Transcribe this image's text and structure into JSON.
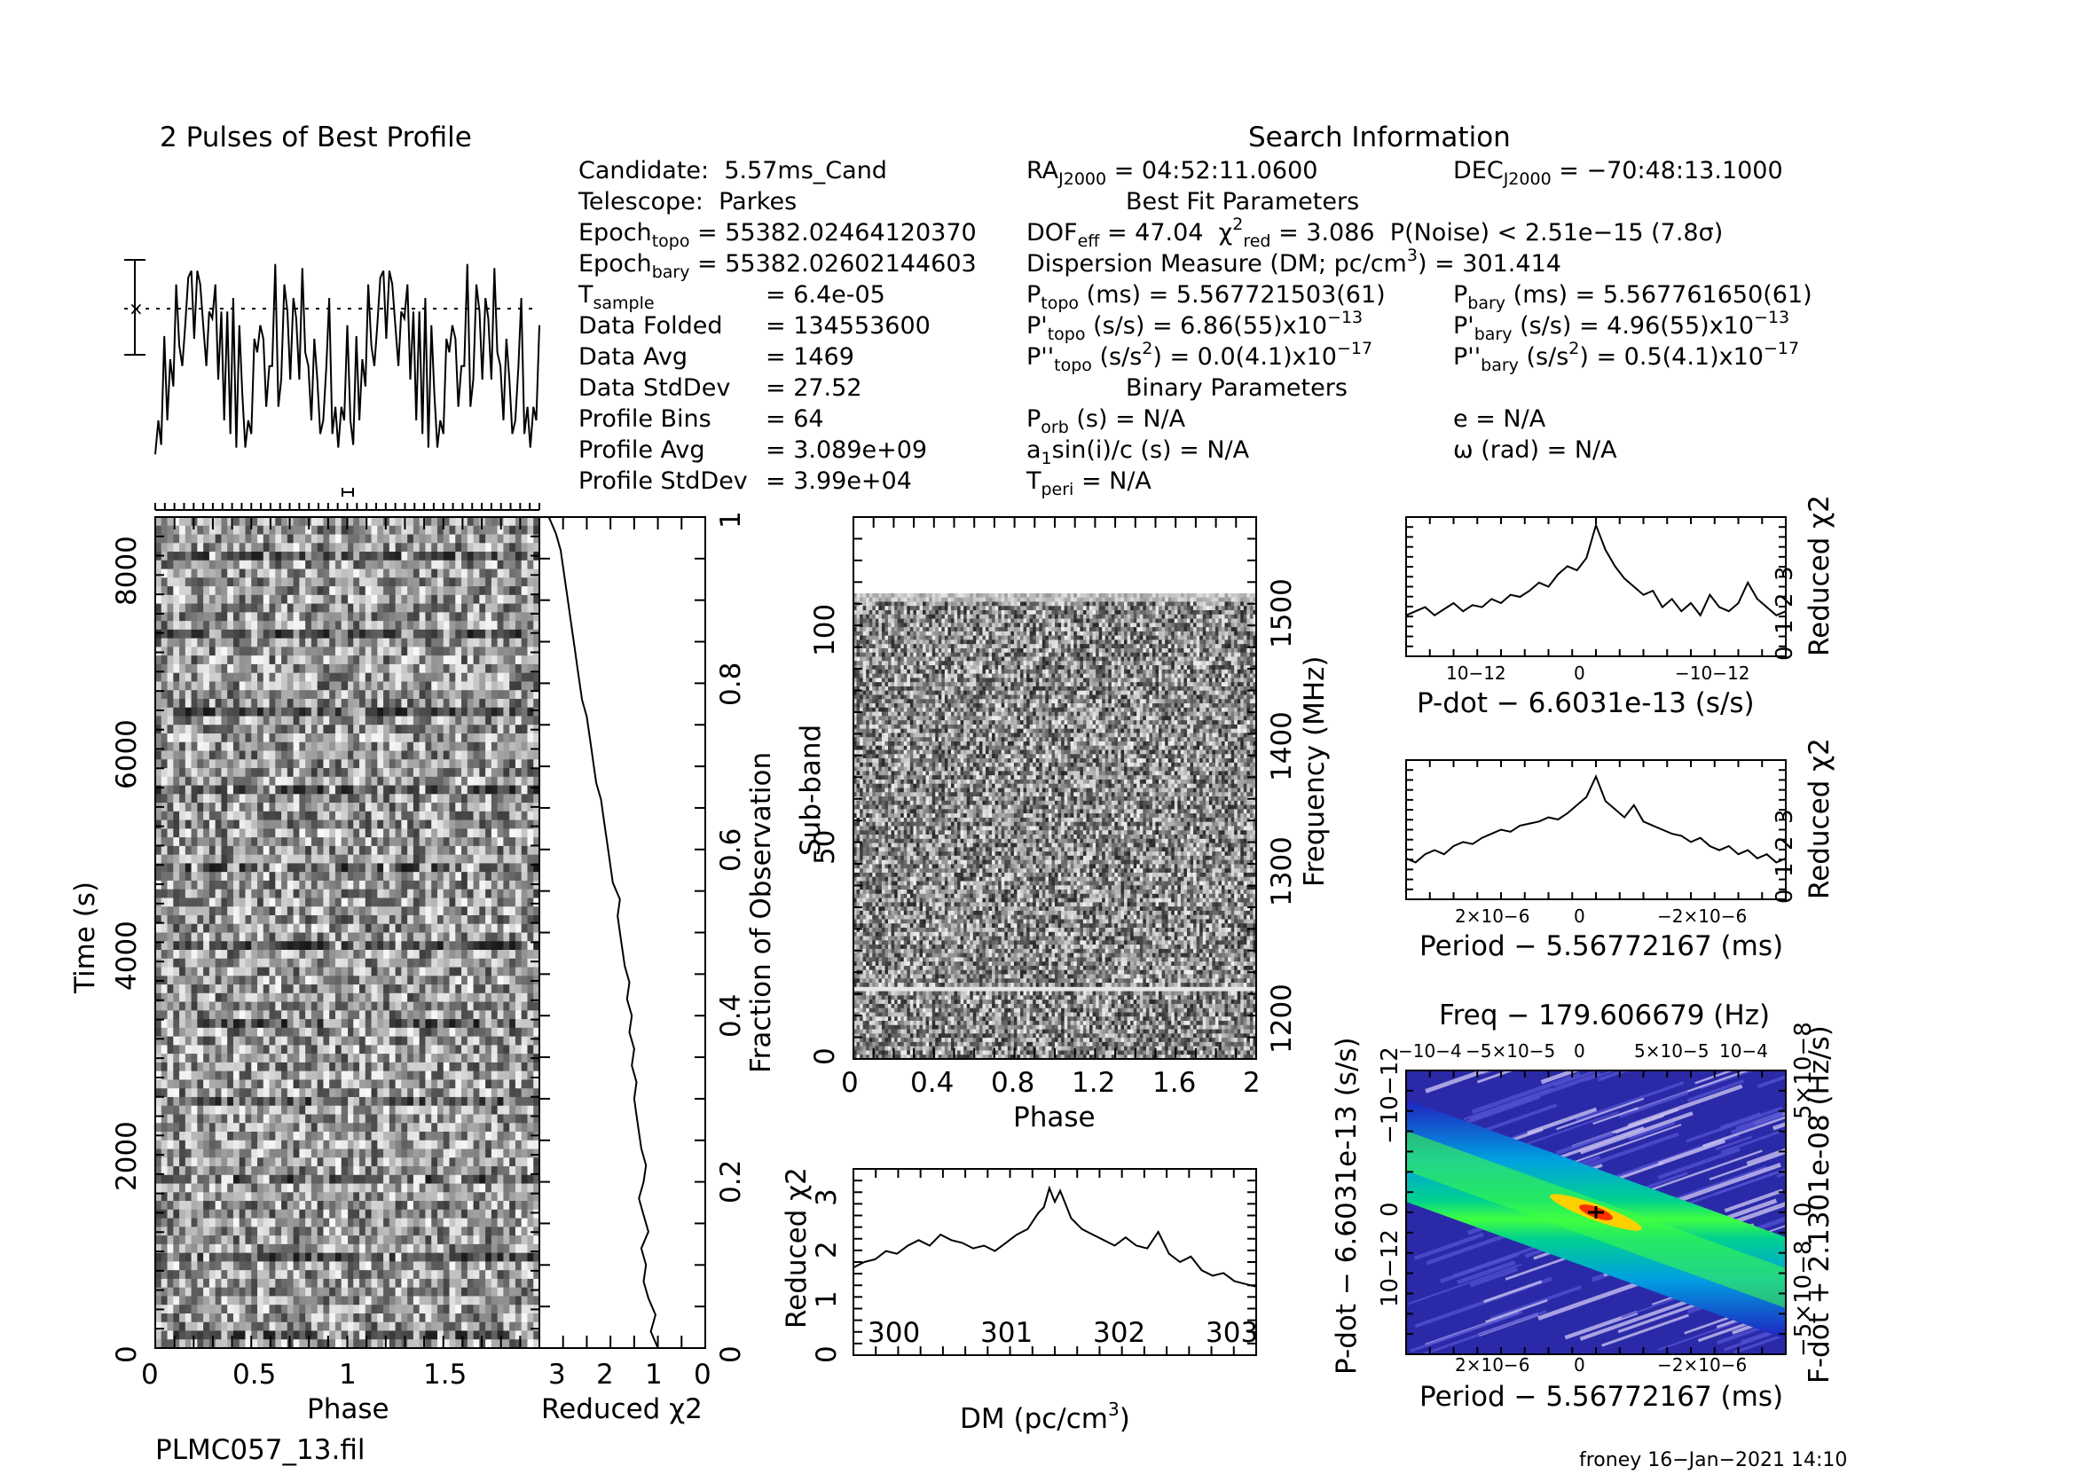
{
  "chart_data": [
    {
      "type": "line",
      "title": "2 Pulses of Best Profile",
      "x": [
        0,
        0.016,
        0.031,
        0.047,
        0.063,
        0.078,
        0.094,
        0.109,
        0.125,
        0.141,
        0.156,
        0.172,
        0.188,
        0.203,
        0.219,
        0.234,
        0.25,
        0.266,
        0.281,
        0.297,
        0.313,
        0.328,
        0.344,
        0.359,
        0.375,
        0.391,
        0.406,
        0.422,
        0.438,
        0.453,
        0.469,
        0.484,
        0.5,
        0.516,
        0.531,
        0.547,
        0.563,
        0.578,
        0.594,
        0.609,
        0.625,
        0.641,
        0.656,
        0.672,
        0.688,
        0.703,
        0.719,
        0.734,
        0.75,
        0.766,
        0.781,
        0.797,
        0.813,
        0.828,
        0.844,
        0.859,
        0.875,
        0.891,
        0.906,
        0.922,
        0.938,
        0.953,
        0.969,
        0.984,
        1.0,
        1.016,
        1.031,
        1.047,
        1.063,
        1.078,
        1.094,
        1.109,
        1.125,
        1.141,
        1.156,
        1.172,
        1.188,
        1.203,
        1.219,
        1.234,
        1.25,
        1.266,
        1.281,
        1.297,
        1.313,
        1.328,
        1.344,
        1.359,
        1.375,
        1.391,
        1.406,
        1.422,
        1.438,
        1.453,
        1.469,
        1.484,
        1.5,
        1.516,
        1.531,
        1.547,
        1.563,
        1.578,
        1.594,
        1.609,
        1.625,
        1.641,
        1.656,
        1.672,
        1.688,
        1.703,
        1.719,
        1.734,
        1.75,
        1.766,
        1.781,
        1.797,
        1.813,
        1.828,
        1.844,
        1.859,
        1.875,
        1.891,
        1.906,
        1.922,
        1.938,
        1.953,
        1.969,
        1.984,
        2.0
      ],
      "values": [
        0.05,
        0.3,
        0.12,
        0.92,
        0.3,
        0.75,
        0.55,
        1.3,
        0.85,
        0.7,
        1.0,
        1.35,
        1.4,
        0.9,
        1.4,
        1.3,
        1.0,
        0.7,
        1.1,
        1.05,
        1.3,
        0.6,
        1.1,
        0.3,
        1.1,
        0.2,
        1.2,
        0.1,
        1.0,
        0.5,
        0.1,
        0.3,
        0.2,
        0.9,
        0.8,
        1.0,
        0.9,
        0.4,
        0.7,
        0.7,
        1.45,
        0.4,
        0.6,
        1.3,
        1.1,
        0.6,
        1.2,
        1.05,
        0.6,
        1.42,
        0.8,
        0.7,
        0.3,
        0.9,
        0.6,
        0.2,
        0.3,
        0.7,
        1.2,
        0.2,
        0.4,
        0.1,
        0.4,
        0.3,
        1.0,
        0.3,
        0.12,
        0.92,
        0.3,
        0.75,
        0.55,
        1.3,
        0.85,
        0.7,
        1.0,
        1.35,
        1.4,
        0.9,
        1.4,
        1.3,
        1.0,
        0.7,
        1.1,
        1.05,
        1.3,
        0.6,
        1.1,
        0.3,
        1.1,
        0.2,
        1.2,
        0.1,
        1.0,
        0.5,
        0.1,
        0.3,
        0.2,
        0.9,
        0.8,
        1.0,
        0.9,
        0.4,
        0.7,
        0.7,
        1.45,
        0.4,
        0.6,
        1.3,
        1.1,
        0.6,
        1.2,
        1.05,
        0.6,
        1.42,
        0.8,
        0.7,
        0.3,
        0.9,
        0.6,
        0.2,
        0.3,
        0.7,
        1.2,
        0.2,
        0.4,
        0.1,
        0.4,
        0.3,
        1.0
      ]
    },
    {
      "type": "heatmap",
      "xlabel": "Phase",
      "ylabel": "Time (s)",
      "xlim": [
        0,
        2
      ],
      "ylim": [
        0,
        8600
      ],
      "xticks": [
        "0",
        "0.5",
        "1",
        "1.5"
      ],
      "yticks": [
        "0",
        "2000",
        "4000",
        "6000",
        "8000"
      ],
      "colormap": "grayscale"
    },
    {
      "type": "line",
      "xlabel": "Reduced χ2",
      "ylabel": "Fraction of Observation",
      "xlim": [
        3.5,
        0
      ],
      "ylim": [
        0,
        1
      ],
      "xticks": [
        "3",
        "2",
        "1",
        "0"
      ],
      "yticks": [
        "0",
        "0.2",
        "0.4",
        "0.6",
        "0.8",
        "1"
      ],
      "fraction": [
        0,
        0.02,
        0.04,
        0.06,
        0.08,
        0.1,
        0.12,
        0.14,
        0.16,
        0.18,
        0.2,
        0.22,
        0.24,
        0.26,
        0.28,
        0.3,
        0.32,
        0.34,
        0.36,
        0.38,
        0.4,
        0.42,
        0.44,
        0.46,
        0.48,
        0.5,
        0.52,
        0.54,
        0.56,
        0.58,
        0.6,
        0.62,
        0.64,
        0.66,
        0.68,
        0.7,
        0.72,
        0.74,
        0.76,
        0.78,
        0.8,
        0.82,
        0.84,
        0.86,
        0.88,
        0.9,
        0.92,
        0.94,
        0.96,
        0.98,
        1.0
      ],
      "chi2": [
        1.0,
        1.15,
        1.05,
        1.2,
        1.3,
        1.25,
        1.35,
        1.2,
        1.3,
        1.4,
        1.3,
        1.25,
        1.35,
        1.4,
        1.45,
        1.5,
        1.45,
        1.55,
        1.5,
        1.6,
        1.55,
        1.65,
        1.6,
        1.7,
        1.75,
        1.8,
        1.85,
        1.8,
        1.95,
        2.0,
        2.05,
        2.1,
        2.15,
        2.2,
        2.3,
        2.35,
        2.4,
        2.45,
        2.5,
        2.6,
        2.65,
        2.7,
        2.75,
        2.8,
        2.85,
        2.9,
        2.95,
        3.0,
        3.05,
        3.15,
        3.3
      ]
    },
    {
      "type": "heatmap",
      "xlabel": "Phase",
      "ylabel": "Sub-band",
      "ylabel_right": "Frequency (MHz)",
      "xlim": [
        0,
        2
      ],
      "ylim": [
        0,
        128
      ],
      "xticks": [
        "0",
        "0.4",
        "0.8",
        "1.2",
        "1.6",
        "2"
      ],
      "yticks": [
        "0",
        "50",
        "100"
      ],
      "yticks_right": [
        "1200",
        "1300",
        "1400",
        "1500"
      ],
      "colormap": "grayscale"
    },
    {
      "type": "line",
      "xlabel": "DM (pc/cm3)",
      "ylabel": "Reduced χ2",
      "xlim": [
        299.6,
        303.3
      ],
      "ylim": [
        0,
        3.4
      ],
      "xticks": [
        "300",
        "301",
        "302",
        "303"
      ],
      "yticks": [
        "0",
        "1",
        "2",
        "3"
      ],
      "x": [
        299.6,
        299.7,
        299.8,
        299.9,
        300.0,
        300.1,
        300.2,
        300.3,
        300.4,
        300.5,
        300.6,
        300.7,
        300.8,
        300.9,
        301.0,
        301.1,
        301.2,
        301.3,
        301.35,
        301.4,
        301.45,
        301.5,
        301.55,
        301.6,
        301.7,
        301.8,
        301.9,
        302.0,
        302.1,
        302.2,
        302.3,
        302.4,
        302.5,
        302.6,
        302.7,
        302.8,
        302.9,
        303.0,
        303.1,
        303.2,
        303.3
      ],
      "values": [
        1.6,
        1.7,
        1.75,
        1.9,
        1.85,
        2.0,
        2.1,
        2.0,
        2.2,
        2.1,
        2.05,
        1.95,
        2.0,
        1.9,
        2.05,
        2.2,
        2.3,
        2.6,
        2.7,
        3.05,
        2.8,
        3.0,
        2.75,
        2.5,
        2.3,
        2.2,
        2.1,
        2.0,
        2.15,
        2.0,
        1.95,
        2.25,
        1.85,
        1.7,
        1.8,
        1.55,
        1.45,
        1.5,
        1.35,
        1.3,
        1.25
      ]
    },
    {
      "type": "line",
      "xlabel": "P-dot − 6.6031e-13 (s/s)",
      "ylabel": "Reduced χ2",
      "xlim": [
        -2e-12,
        2e-12
      ],
      "ylim": [
        0,
        3.4
      ],
      "xticks": [
        "10−12",
        "0",
        "−10−12"
      ],
      "yticks": [
        "0",
        "1",
        "2",
        "3"
      ],
      "x": [
        -2.0,
        -1.9,
        -1.8,
        -1.7,
        -1.6,
        -1.5,
        -1.4,
        -1.3,
        -1.2,
        -1.1,
        -1.0,
        -0.9,
        -0.8,
        -0.7,
        -0.6,
        -0.5,
        -0.4,
        -0.3,
        -0.2,
        -0.1,
        0.0,
        0.1,
        0.2,
        0.3,
        0.4,
        0.5,
        0.6,
        0.7,
        0.8,
        0.9,
        1.0,
        1.1,
        1.2,
        1.3,
        1.4,
        1.5,
        1.6,
        1.7,
        1.8,
        1.9,
        2.0
      ],
      "values": [
        1.0,
        1.1,
        1.2,
        1.0,
        1.15,
        1.3,
        1.1,
        1.25,
        1.2,
        1.4,
        1.3,
        1.5,
        1.45,
        1.6,
        1.8,
        1.7,
        2.0,
        2.2,
        2.1,
        2.4,
        3.2,
        2.6,
        2.2,
        1.9,
        1.7,
        1.5,
        1.6,
        1.2,
        1.4,
        1.1,
        1.3,
        1.0,
        1.5,
        1.2,
        1.1,
        1.3,
        1.8,
        1.4,
        1.2,
        1.0,
        1.1
      ]
    },
    {
      "type": "line",
      "xlabel": "Period − 5.56772167 (ms)",
      "ylabel": "Reduced χ2",
      "xlim": [
        -4e-06,
        4e-06
      ],
      "ylim": [
        0,
        3.4
      ],
      "xticks": [
        "2×10−6",
        "0",
        "−2×10−6"
      ],
      "yticks": [
        "0",
        "1",
        "2",
        "3"
      ],
      "x": [
        -4.0,
        -3.8,
        -3.6,
        -3.4,
        -3.2,
        -3.0,
        -2.8,
        -2.6,
        -2.4,
        -2.2,
        -2.0,
        -1.8,
        -1.6,
        -1.4,
        -1.2,
        -1.0,
        -0.8,
        -0.6,
        -0.4,
        -0.2,
        0.0,
        0.2,
        0.4,
        0.6,
        0.8,
        1.0,
        1.2,
        1.4,
        1.6,
        1.8,
        2.0,
        2.2,
        2.4,
        2.6,
        2.8,
        3.0,
        3.2,
        3.4,
        3.6,
        3.8,
        4.0
      ],
      "values": [
        1.0,
        0.9,
        1.1,
        1.2,
        1.1,
        1.3,
        1.4,
        1.35,
        1.5,
        1.6,
        1.7,
        1.65,
        1.8,
        1.85,
        1.9,
        2.0,
        1.95,
        2.1,
        2.3,
        2.5,
        3.0,
        2.4,
        2.2,
        2.0,
        2.3,
        1.9,
        1.8,
        1.7,
        1.6,
        1.55,
        1.4,
        1.5,
        1.3,
        1.2,
        1.3,
        1.1,
        1.2,
        1.0,
        1.1,
        0.9,
        1.0
      ]
    },
    {
      "type": "heatmap",
      "title": "Freq − 179.606679 (Hz)",
      "xlabel": "Period − 5.56772167 (ms)",
      "ylabel": "P-dot − 6.6031e-13 (s/s)",
      "ylabel_right": "F-dot + 2.1301e-08 (Hz/s)",
      "xticks": [
        "2×10−6",
        "0",
        "−2×10−6"
      ],
      "xticks_top": [
        "−10−4",
        "−5×10−5",
        "0",
        "5×10−5",
        "10−4"
      ],
      "yticks": [
        "10−12",
        "0",
        "−10−12"
      ],
      "yticks_right": [
        "−5×10−8",
        "0",
        "5×10−8"
      ],
      "colormap": "rainbow"
    }
  ],
  "info": {
    "section_title": "Search Information",
    "candidate_label": "Candidate:",
    "candidate_value": "5.57ms_Cand",
    "telescope_label": "Telescope:",
    "telescope_value": "Parkes",
    "epoch_topo_label": "Epoch",
    "epoch_topo_sub": "topo",
    "epoch_topo_value": "= 55382.02464120370",
    "epoch_bary_label": "Epoch",
    "epoch_bary_sub": "bary",
    "epoch_bary_value": "= 55382.02602144603",
    "tsample_label": "T",
    "tsample_sub": "sample",
    "tsample_value": "=   6.4e-05",
    "folded_label": "Data Folded",
    "folded_value": "=   134553600",
    "avg_label": "Data Avg",
    "avg_value": "=   1469",
    "std_label": "Data StdDev",
    "std_value": "=   27.52",
    "bins_label": "Profile Bins",
    "bins_value": "=   64",
    "pavg_label": "Profile Avg",
    "pavg_value": "=   3.089e+09",
    "pstd_label": "Profile StdDev",
    "pstd_value": "=   3.99e+04",
    "ra_label": "RA",
    "ra_sub": "J2000",
    "ra_value": "= 04:52:11.0600",
    "dec_label": "DEC",
    "dec_sub": "J2000",
    "dec_value": "= −70:48:13.1000",
    "best_fit_title": "Best Fit Parameters",
    "dof_label": "DOF",
    "dof_sub": "eff",
    "dof_value": "= 47.04",
    "chi_label": "χ",
    "chi_sup": "2",
    "chi_sub": "red",
    "chi_value": "= 3.086",
    "pnoise": "P(Noise) < 2.51e−15   (7.8σ)",
    "dm_line_a": "Dispersion Measure (DM; pc/cm",
    "dm_line_sup": "3",
    "dm_line_b": ") = 301.414",
    "ptopo_label": "P",
    "ptopo_sub": "topo",
    "ptopo_value": "(ms) =  5.567721503(61)",
    "pbary_label": "P",
    "pbary_sub": "bary",
    "pbary_value": "(ms) =  5.567761650(61)",
    "pdtopo_label": "P'",
    "pdtopo_sub": "topo",
    "pdtopo_value": "(s/s) =  6.86(55)x10",
    "pdtopo_exp": "−13",
    "pdbary_label": "P'",
    "pdbary_sub": "bary",
    "pdbary_value": "(s/s) =  4.96(55)x10",
    "pdbary_exp": "−13",
    "pddtopo_label": "P''",
    "pddtopo_sub": "topo",
    "pddtopo_value_a": "(s/s",
    "pddtopo_value_sup": "2",
    "pddtopo_value_b": ") = 0.0(4.1)x10",
    "pddtopo_exp": "−17",
    "pddbary_label": "P''",
    "pddbary_sub": "bary",
    "pddbary_value_a": "(s/s",
    "pddbary_value_sup": "2",
    "pddbary_value_b": ") =  0.5(4.1)x10",
    "pddbary_exp": "−17",
    "binary_title": "Binary Parameters",
    "porb_label": "P",
    "porb_sub": "orb",
    "porb_value": "(s) = N/A",
    "e_text": "e = N/A",
    "a1_label": "a",
    "a1_sub": "1",
    "a1_value": "sin(i)/c (s) = N/A",
    "omega_text": "ω (rad) = N/A",
    "tperi_label": "T",
    "tperi_sub": "peri",
    "tperi_value": "= N/A"
  },
  "footer": {
    "filename": "PLMC057_13.fil",
    "stamp": "froney 16−Jan−2021 14:10"
  }
}
